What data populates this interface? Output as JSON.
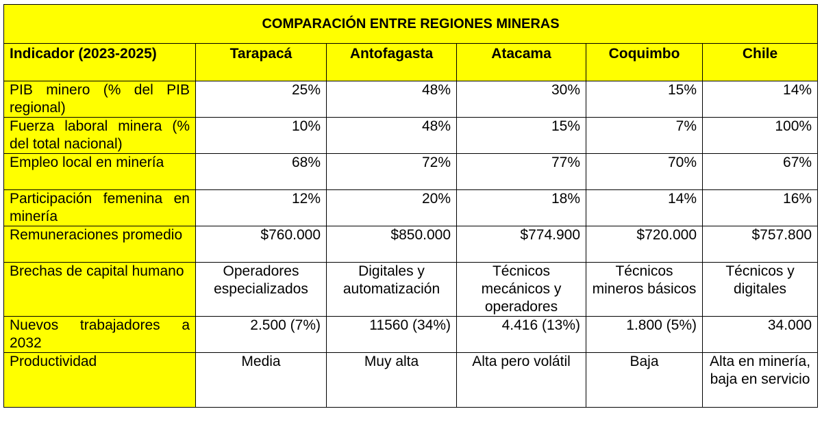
{
  "title": "COMPARACIÓN ENTRE REGIONES MINERAS",
  "columns": [
    "Indicador (2023-2025)",
    "Tarapacá",
    "Antofagasta",
    "Atacama",
    "Coquimbo",
    "Chile"
  ],
  "rows": [
    {
      "label": "PIB minero (% del PIB regional)",
      "cells": [
        "25%",
        "48%",
        "30%",
        "15%",
        "14%"
      ]
    },
    {
      "label": "Fuerza laboral minera (% del total nacional)",
      "cells": [
        "10%",
        "48%",
        "15%",
        "7%",
        "100%"
      ]
    },
    {
      "label": "Empleo local en minería",
      "cells": [
        "68%",
        "72%",
        "77%",
        "70%",
        "67%"
      ]
    },
    {
      "label": "Participación femenina en minería",
      "cells": [
        "12%",
        "20%",
        "18%",
        "14%",
        "16%"
      ]
    },
    {
      "label": "Remuneraciones promedio",
      "cells": [
        "$760.000",
        "$850.000",
        "$774.900",
        "$720.000",
        "$757.800"
      ]
    },
    {
      "label": "Brechas de capital humano",
      "cells": [
        "Operadores especializados",
        "Digitales y automatización",
        "Técnicos mecánicos y operadores",
        "Técnicos mineros básicos",
        "Técnicos y digitales"
      ]
    },
    {
      "label": "Nuevos trabajadores a 2032",
      "cells": [
        "2.500 (7%)",
        "11560 (34%)",
        "4.416 (13%)",
        "1.800 (5%)",
        "34.000"
      ]
    },
    {
      "label": "Productividad",
      "cells": [
        "Media",
        "Muy alta",
        "Alta pero volátil",
        "Baja",
        "Alta en minería, baja en servicio"
      ]
    }
  ]
}
